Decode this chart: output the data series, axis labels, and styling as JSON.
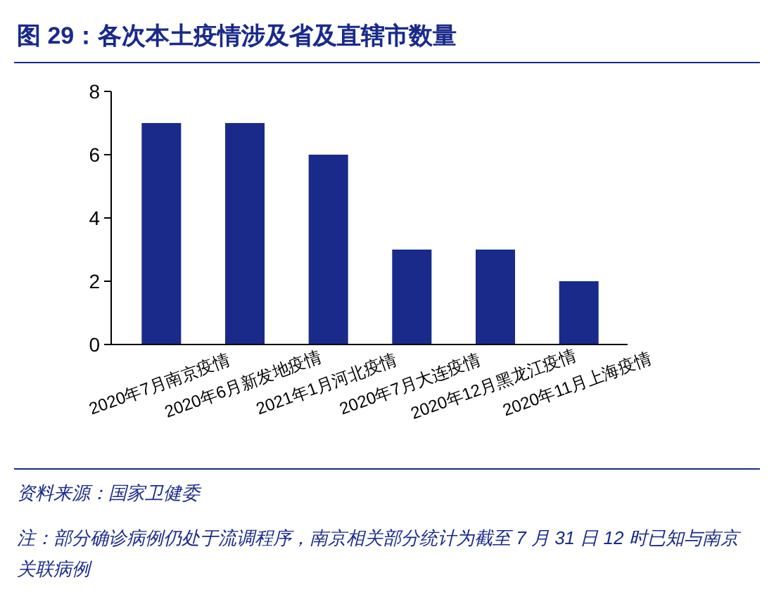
{
  "chart_data": {
    "type": "bar",
    "title": "图 29：各次本土疫情涉及省及直辖市数量",
    "categories": [
      "2020年7月南京疫情",
      "2020年6月新发地疫情",
      "2021年1月河北疫情",
      "2020年7月大连疫情",
      "2020年12月黑龙江疫情",
      "2020年11月上海疫情"
    ],
    "values": [
      7,
      7,
      6,
      3,
      3,
      2
    ],
    "color": "#1a2a8a",
    "ylim": [
      0,
      8
    ],
    "yticks": [
      0,
      2,
      4,
      6,
      8
    ],
    "annotations": [
      "资料来源：国家卫健委",
      "注：部分确诊病例仍处于流调程序，南京相关部分统计为截至 7 月 31 日 12 时已知与南京关联病例"
    ]
  }
}
